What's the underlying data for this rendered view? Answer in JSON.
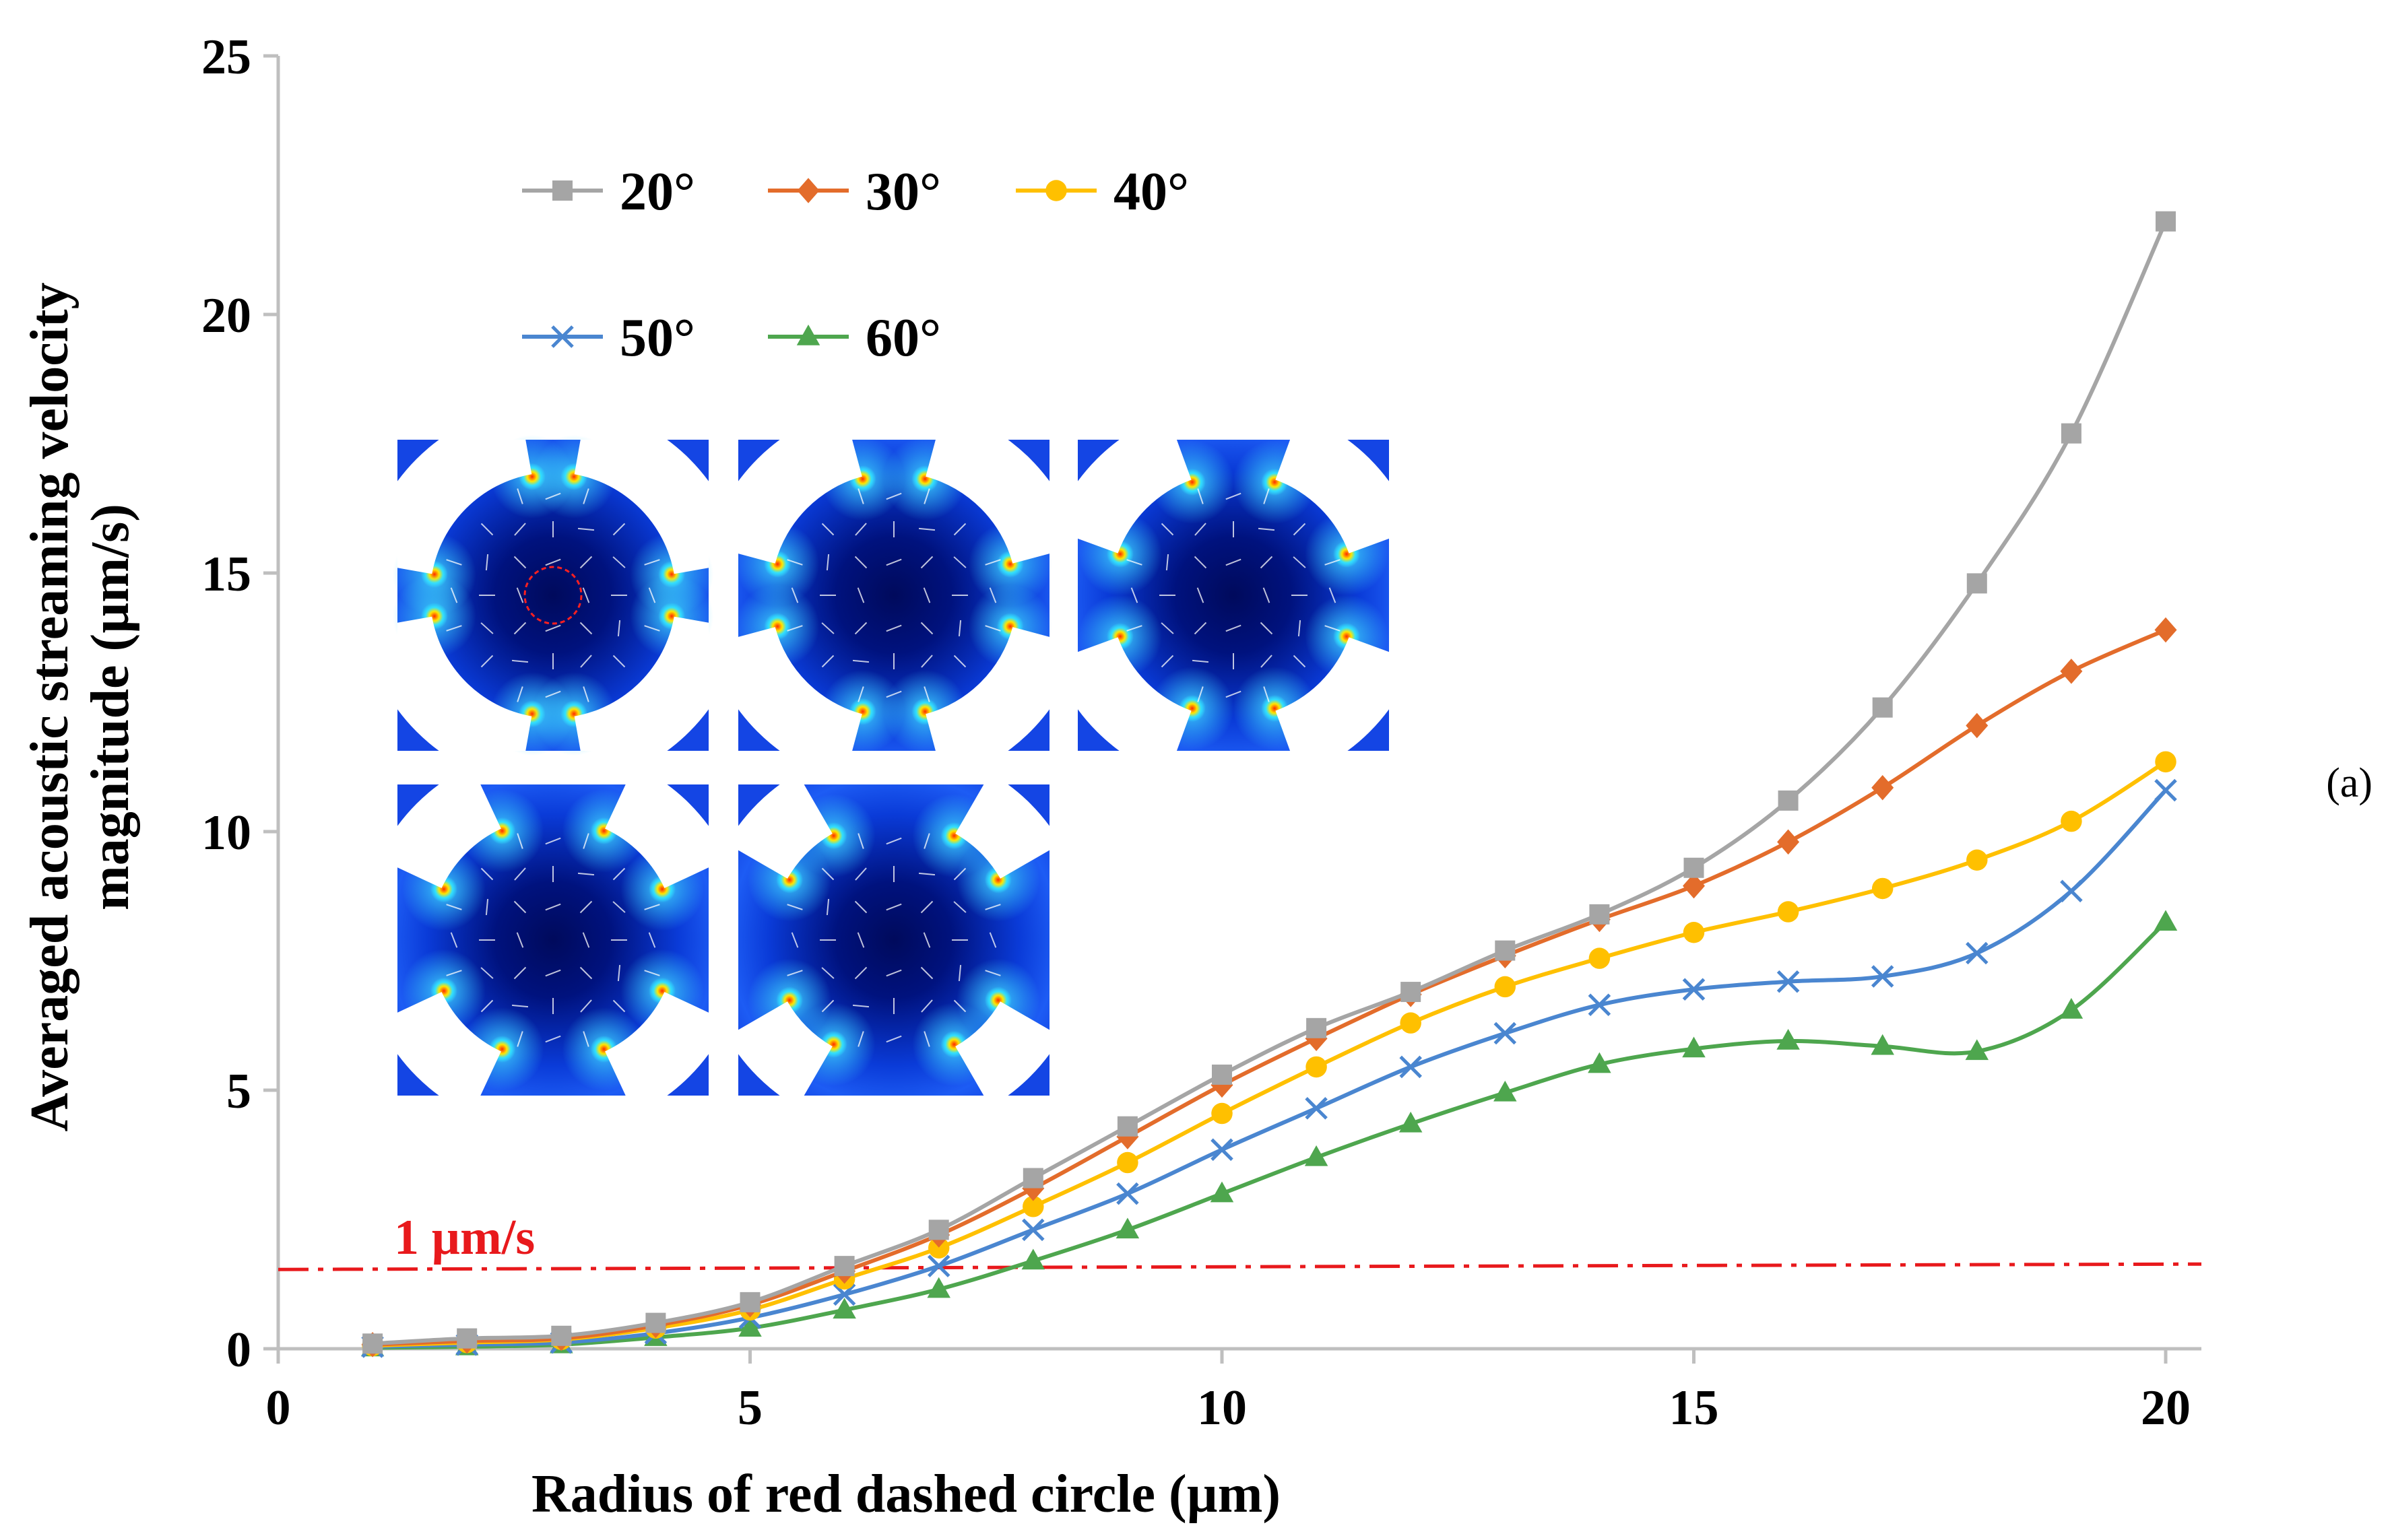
{
  "chart_data": {
    "type": "line",
    "title": "",
    "xlabel": "Radius of red dashed circle (µm)",
    "ylabel_line1": "Averaged acoustic streaming velocity",
    "ylabel_line2": "magnitude (µm/s)",
    "xlim": [
      0,
      20
    ],
    "ylim": [
      0,
      25
    ],
    "x_ticks": [
      "0",
      "5",
      "10",
      "15",
      "20"
    ],
    "y_ticks": [
      "0",
      "5",
      "10",
      "15",
      "20",
      "25"
    ],
    "grid": false,
    "legend_position": "top-left",
    "x": [
      1,
      2,
      3,
      4,
      5,
      6,
      7,
      8,
      9,
      10,
      11,
      12,
      13,
      14,
      15,
      16,
      17,
      18,
      19,
      20
    ],
    "series": [
      {
        "name": "20°",
        "color": "#a5a5a5",
        "marker": "square",
        "values": [
          0.1,
          0.2,
          0.25,
          0.5,
          0.9,
          1.6,
          2.3,
          3.3,
          4.3,
          5.3,
          6.2,
          6.9,
          7.7,
          8.4,
          9.3,
          10.6,
          12.4,
          14.8,
          17.7,
          21.8
        ]
      },
      {
        "name": "30°",
        "color": "#e36c2b",
        "marker": "diamond",
        "values": [
          0.08,
          0.15,
          0.2,
          0.45,
          0.85,
          1.5,
          2.2,
          3.1,
          4.1,
          5.1,
          6.0,
          6.85,
          7.6,
          8.3,
          8.95,
          9.8,
          10.85,
          12.05,
          13.1,
          13.9
        ]
      },
      {
        "name": "40°",
        "color": "#ffc000",
        "marker": "circle",
        "values": [
          0.06,
          0.12,
          0.18,
          0.4,
          0.75,
          1.35,
          1.95,
          2.75,
          3.6,
          4.55,
          5.45,
          6.3,
          7.0,
          7.55,
          8.05,
          8.45,
          8.9,
          9.45,
          10.2,
          11.35
        ]
      },
      {
        "name": "50°",
        "color": "#4a86d0",
        "marker": "x",
        "values": [
          0.04,
          0.08,
          0.12,
          0.3,
          0.6,
          1.05,
          1.6,
          2.3,
          3.0,
          3.85,
          4.65,
          5.45,
          6.1,
          6.65,
          6.95,
          7.1,
          7.2,
          7.65,
          8.85,
          10.8
        ]
      },
      {
        "name": "60°",
        "color": "#4ea64e",
        "marker": "triangle",
        "values": [
          0.02,
          0.04,
          0.08,
          0.22,
          0.4,
          0.75,
          1.15,
          1.7,
          2.3,
          3.0,
          3.7,
          4.35,
          4.95,
          5.5,
          5.8,
          5.95,
          5.85,
          5.75,
          6.55,
          8.25
        ]
      }
    ],
    "threshold": {
      "value": 1,
      "label": "1 µm/s",
      "color": "#e8191c"
    },
    "panel_label": "(a)",
    "inset": {
      "description_count": 5
    }
  }
}
